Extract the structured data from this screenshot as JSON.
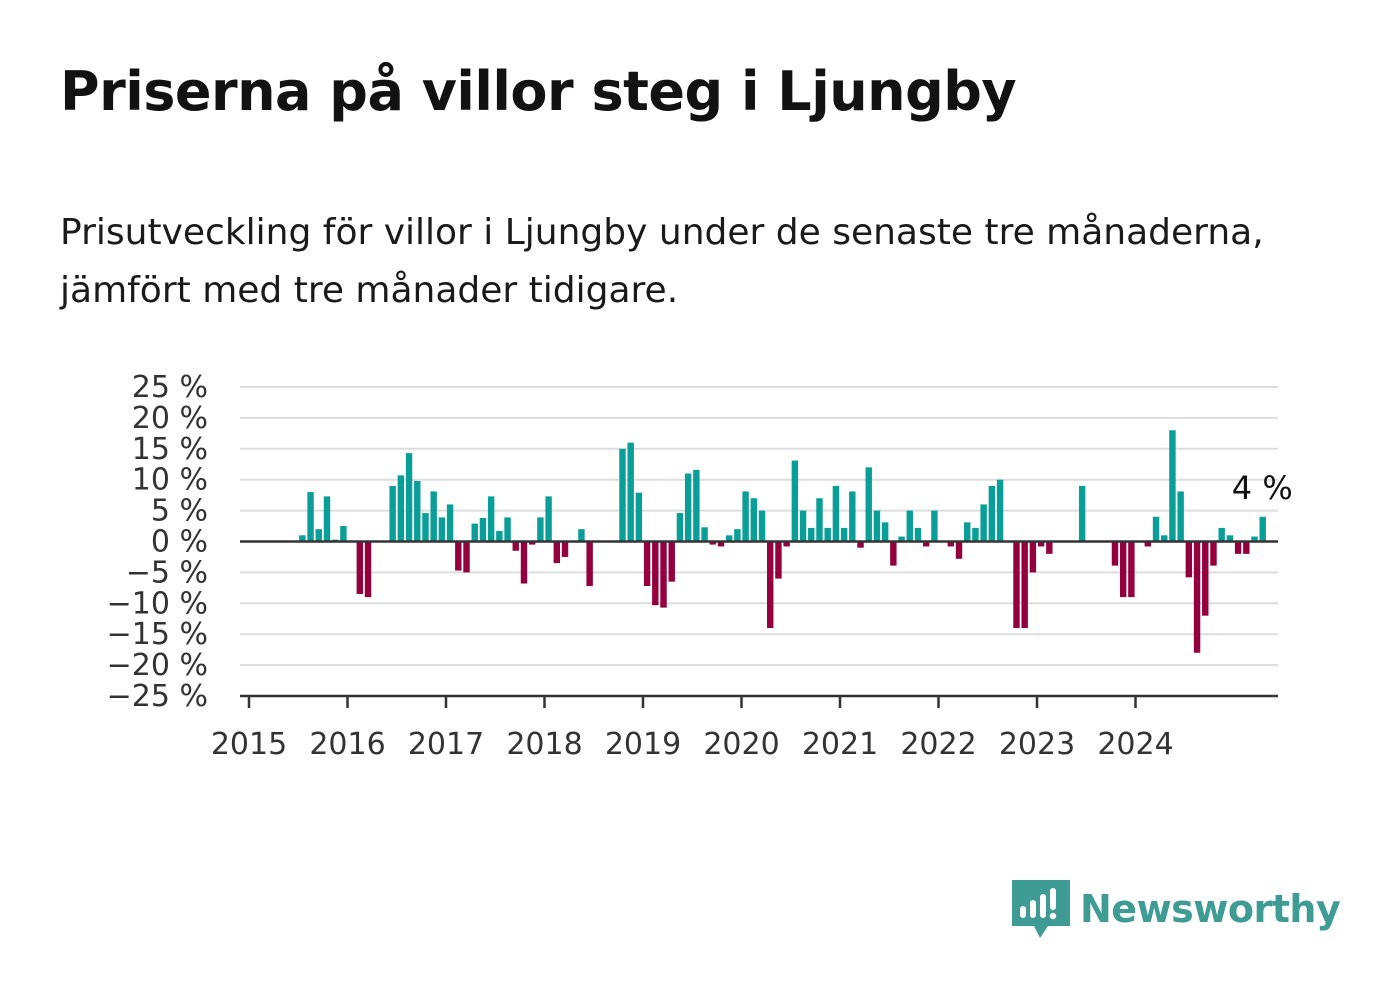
{
  "title": "Priserna på villor steg i Ljungby",
  "subtitle": "Prisutveckling för villor i Ljungby under de senaste tre månaderna, jämfört med tre månader tidigare.",
  "brand": {
    "name": "Newsworthy",
    "icon": "newsworthy-logo-icon"
  },
  "colors": {
    "positive": "#0a9e99",
    "negative": "#94003e",
    "grid": "#dddddd",
    "axis": "#333333",
    "brand": "#3f9c95"
  },
  "chart_data": {
    "type": "bar",
    "title": "Priserna på villor steg i Ljungby",
    "subtitle": "Prisutveckling för villor i Ljungby under de senaste tre månaderna, jämfört med tre månader tidigare.",
    "xlabel": "",
    "ylabel": "",
    "ylim": [
      -25,
      25
    ],
    "yticks": [
      "25 %",
      "20 %",
      "15 %",
      "10 %",
      "5 %",
      "0 %",
      "−5 %",
      "−10 %",
      "−15 %",
      "−20 %",
      "−25 %"
    ],
    "xticks": [
      "2015",
      "2016",
      "2017",
      "2018",
      "2019",
      "2020",
      "2021",
      "2022",
      "2023",
      "2024"
    ],
    "x_start": "2015-01",
    "grid": true,
    "annotation": {
      "text": "4 %"
    },
    "values": [
      null,
      null,
      null,
      null,
      null,
      null,
      1,
      8,
      2,
      7.3,
      0.3,
      2.5,
      0,
      -8.5,
      -9,
      0,
      0,
      9,
      10.7,
      14.3,
      9.8,
      4.6,
      8.1,
      3.9,
      6,
      -4.7,
      -5,
      2.9,
      3.8,
      7.3,
      1.7,
      3.9,
      -1.5,
      -6.8,
      -0.5,
      3.9,
      7.3,
      -3.5,
      -2.5,
      0,
      2,
      -7.2,
      0,
      0,
      0,
      15,
      16,
      7.9,
      -7.2,
      -10.3,
      -10.7,
      -6.5,
      4.6,
      11,
      11.6,
      2.3,
      -0.5,
      -0.8,
      1,
      2,
      8.1,
      7,
      5,
      -14,
      -6,
      -0.8,
      13.1,
      5,
      2.2,
      7,
      2.2,
      9,
      2.2,
      8.1,
      -1,
      12,
      5,
      3.1,
      -3.9,
      0.8,
      5,
      2.2,
      -0.8,
      5,
      0,
      -0.8,
      -2.8,
      3.1,
      2.2,
      6,
      9,
      10,
      0,
      -14,
      -14,
      -5,
      -0.8,
      -2,
      0,
      0,
      0,
      9,
      0,
      0,
      0,
      -3.9,
      -9,
      -9,
      0,
      -0.8,
      4,
      1,
      18,
      8.1,
      -5.8,
      -18,
      -12,
      -3.9,
      2.2,
      1,
      -2,
      -2,
      0.8,
      4
    ]
  }
}
